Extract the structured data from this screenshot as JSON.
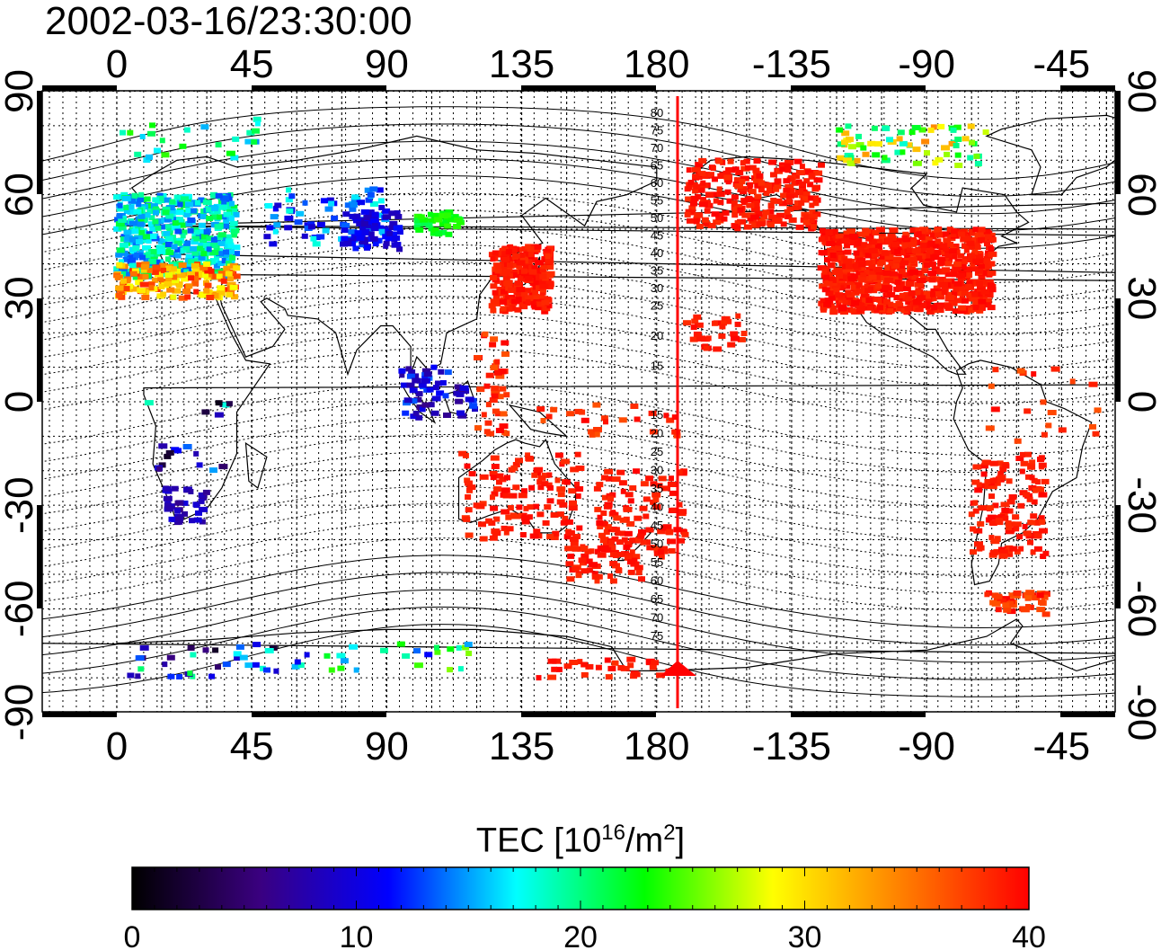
{
  "title": "2002-03-16/23:30:00",
  "map": {
    "lon_ticks_top": [
      "0",
      "45",
      "90",
      "135",
      "180",
      "-135",
      "-90",
      "-45"
    ],
    "lon_ticks_bottom": [
      "0",
      "45",
      "90",
      "135",
      "180",
      "-135",
      "-90",
      "-45"
    ],
    "lat_ticks_left": [
      "90",
      "60",
      "30",
      "0",
      "-30",
      "-60",
      "-90"
    ],
    "lat_ticks_right": [
      "90",
      "60",
      "30",
      "0",
      "-30",
      "-60",
      "-90"
    ],
    "meridian_line_color": "#ff0000",
    "contour_labels_north": [
      "80",
      "75",
      "70",
      "65",
      "60",
      "55",
      "50",
      "45",
      "40",
      "35",
      "30",
      "25",
      "20",
      "15"
    ],
    "contour_labels_south": [
      "15",
      "20",
      "25",
      "30",
      "35",
      "40",
      "45",
      "50",
      "55",
      "60",
      "65",
      "70",
      "75"
    ]
  },
  "colorbar": {
    "title_prefix": "TEC  [10",
    "title_exp1": "16",
    "title_mid": "/m",
    "title_exp2": "2",
    "title_suffix": "]",
    "ticks": [
      "0",
      "10",
      "20",
      "30",
      "40"
    ],
    "min": 0,
    "max": 40,
    "stops": [
      "#000000",
      "#3a0080",
      "#0000ff",
      "#00ffff",
      "#00ff00",
      "#ffff00",
      "#ff8000",
      "#ff0000"
    ]
  }
}
